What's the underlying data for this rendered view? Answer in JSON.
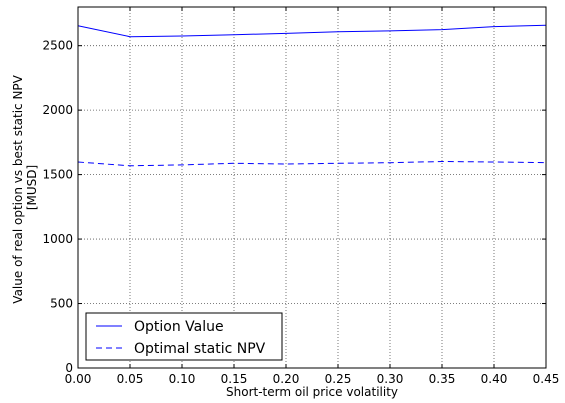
{
  "chart_data": {
    "type": "line",
    "x": [
      0.0,
      0.05,
      0.1,
      0.15,
      0.2,
      0.25,
      0.3,
      0.35,
      0.4,
      0.45
    ],
    "x_tick_labels": [
      "0.00",
      "0.05",
      "0.10",
      "0.15",
      "0.20",
      "0.25",
      "0.30",
      "0.35",
      "0.40",
      "0.45"
    ],
    "y_ticks": [
      0,
      500,
      1000,
      1500,
      2000,
      2500
    ],
    "y_tick_labels": [
      "0",
      "500",
      "1000",
      "1500",
      "2000",
      "2500"
    ],
    "xlim": [
      0.0,
      0.45
    ],
    "ylim": [
      0,
      2800
    ],
    "xlabel": "Short-term oil price volatility",
    "ylabel_lines": [
      "Value of real option vs best static NPV",
      "[MUSD]"
    ],
    "grid": true,
    "grid_style": "dotted",
    "legend_position": "lower-left",
    "series": [
      {
        "name": "Option Value",
        "color": "#0000ff",
        "line_style": "solid",
        "values": [
          2655,
          2570,
          2575,
          2585,
          2595,
          2608,
          2615,
          2625,
          2648,
          2658
        ]
      },
      {
        "name": "Optimal static NPV",
        "color": "#0000ff",
        "line_style": "dashed",
        "values": [
          1598,
          1568,
          1575,
          1588,
          1582,
          1588,
          1592,
          1602,
          1598,
          1593
        ]
      }
    ]
  }
}
